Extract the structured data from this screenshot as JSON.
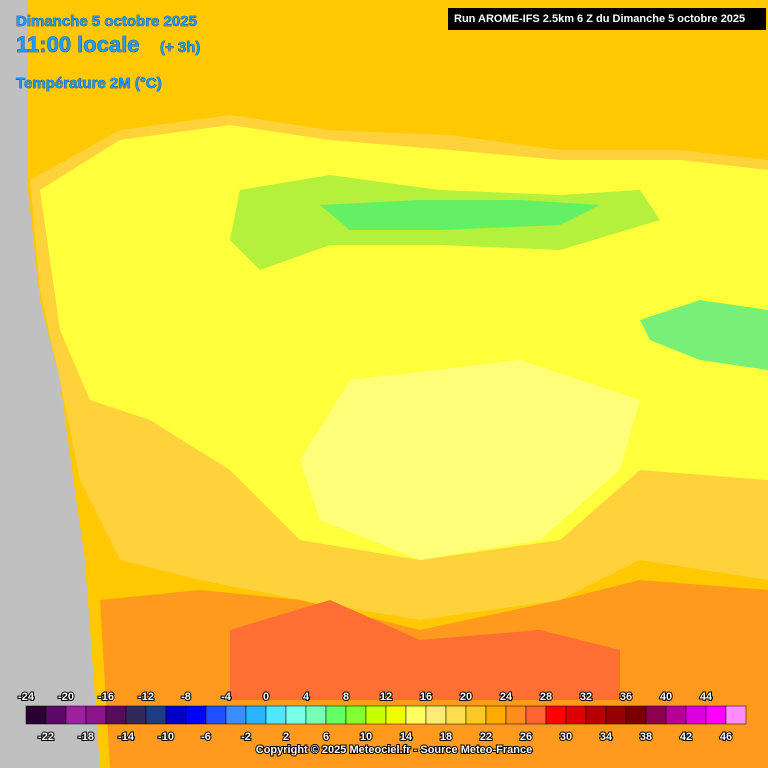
{
  "header": {
    "date": "Dimanche 5 octobre 2025",
    "time": "11:00 locale",
    "offset": "(+ 3h)",
    "parameter": "Température 2M (°C)",
    "run": "Run AROME-IFS 2.5km 6 Z du Dimanche 5 octobre 2025"
  },
  "legend": {
    "values": [
      -24,
      -22,
      -20,
      -18,
      -16,
      -14,
      -12,
      -10,
      -8,
      -6,
      -4,
      -2,
      0,
      2,
      4,
      6,
      8,
      10,
      12,
      14,
      16,
      18,
      20,
      22,
      24,
      26,
      28,
      30,
      32,
      34,
      36,
      38,
      40,
      42,
      44,
      46
    ],
    "colors": [
      "#2a0032",
      "#5a0a64",
      "#a01ea0",
      "#8c148c",
      "#5a0a5a",
      "#32285a",
      "#1e3c82",
      "#0000c8",
      "#0000ff",
      "#1e50ff",
      "#3c8cff",
      "#28b4ff",
      "#50e6ff",
      "#78ffe6",
      "#78ffb4",
      "#64ff64",
      "#82ff32",
      "#c8ff00",
      "#f0ff00",
      "#ffff64",
      "#ffeb78",
      "#ffdc50",
      "#ffc828",
      "#ffaa00",
      "#ff8c1e",
      "#ff6432",
      "#ff0000",
      "#dc0000",
      "#b40000",
      "#960000",
      "#780000",
      "#8c0050",
      "#b40096",
      "#dc00dc",
      "#ff00ff",
      "#ff8cff"
    ]
  },
  "footer": {
    "copyright": "Copyright © 2025 Meteociel.fr - Source Meteo-France"
  }
}
